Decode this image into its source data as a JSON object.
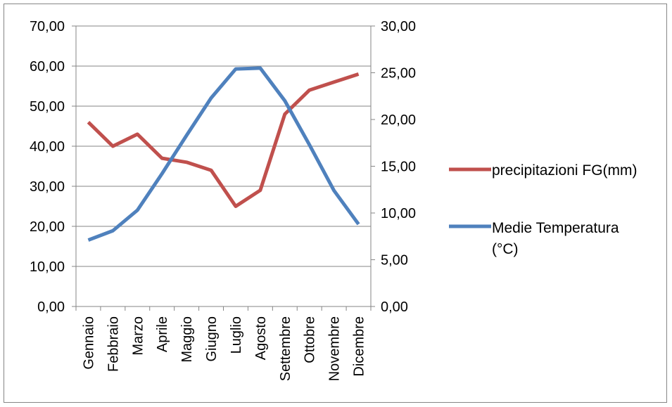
{
  "chart_data": {
    "type": "line",
    "title": "",
    "categories": [
      "Gennaio",
      "Febbraio",
      "Marzo",
      "Aprile",
      "Maggio",
      "Giugno",
      "Luglio",
      "Agosto",
      "Settembre",
      "Ottobre",
      "Novembre",
      "Dicembre"
    ],
    "series": [
      {
        "name": "precipitazioni FG(mm)",
        "axis": "left",
        "color": "#C0504D",
        "values": [
          46,
          40,
          43,
          37,
          36,
          34,
          25,
          29,
          48,
          54,
          56,
          58
        ]
      },
      {
        "name": "Medie Temperatura (°C)",
        "axis": "right",
        "color": "#4F81BD",
        "values": [
          7.1,
          8.1,
          10.3,
          14.2,
          18.3,
          22.3,
          25.4,
          25.5,
          22.0,
          17.3,
          12.4,
          8.8
        ]
      }
    ],
    "ylim_left": [
      0,
      70
    ],
    "yticks_left": [
      "0,00",
      "10,00",
      "20,00",
      "30,00",
      "40,00",
      "50,00",
      "60,00",
      "70,00"
    ],
    "ylim_right": [
      0,
      30
    ],
    "yticks_right": [
      "0,00",
      "5,00",
      "10,00",
      "15,00",
      "20,00",
      "25,00",
      "30,00"
    ],
    "grid": true,
    "legend_position": "right",
    "legend": {
      "entry1": "precipitazioni FG(mm)",
      "entry2_line1": "Medie Temperatura",
      "entry2_line2": "(°C)"
    }
  }
}
